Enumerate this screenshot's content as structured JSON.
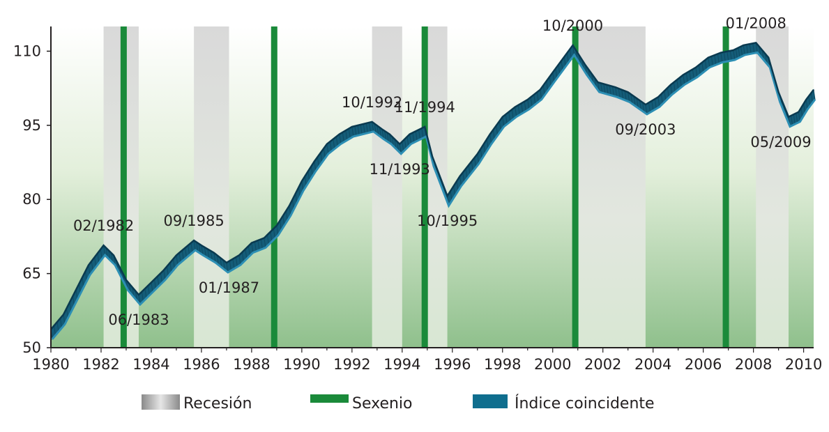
{
  "chart_data": {
    "type": "line",
    "title": "",
    "xlabel": "",
    "ylabel": "",
    "xlim": [
      1980,
      2010.4
    ],
    "ylim": [
      50,
      115
    ],
    "yticks": [
      50,
      65,
      80,
      95,
      110
    ],
    "xticks": [
      1980,
      1982,
      1984,
      1986,
      1988,
      1990,
      1992,
      1994,
      1996,
      1998,
      2000,
      2002,
      2004,
      2006,
      2008,
      2010
    ],
    "grid": false,
    "legend_position": "bottom",
    "legend": [
      {
        "label": "Recesión",
        "color": "#b3b3b3",
        "kind": "recession"
      },
      {
        "label": "Sexenio",
        "color": "#1a8a3a",
        "kind": "sexenio"
      },
      {
        "label": "Índice coincidente",
        "color": "#0f6e8e",
        "kind": "series"
      }
    ],
    "recessions": [
      [
        1982.1,
        1983.5
      ],
      [
        1985.7,
        1987.1
      ],
      [
        1992.8,
        1994.0
      ],
      [
        1994.8,
        1995.8
      ],
      [
        2000.8,
        2003.7
      ],
      [
        2008.1,
        2009.4
      ]
    ],
    "sexenios": [
      1982.9,
      1988.9,
      1994.9,
      2000.9,
      2006.9
    ],
    "series": [
      {
        "name": "Índice coincidente",
        "color": "#0f6e8e",
        "x": [
          1980.0,
          1980.5,
          1981.0,
          1981.5,
          1982.1,
          1982.5,
          1983.0,
          1983.5,
          1984.0,
          1984.5,
          1985.0,
          1985.7,
          1986.0,
          1986.5,
          1987.0,
          1987.5,
          1988.0,
          1988.5,
          1989.0,
          1989.5,
          1990.0,
          1990.5,
          1991.0,
          1991.5,
          1992.0,
          1992.8,
          1993.2,
          1993.5,
          1993.9,
          1994.3,
          1994.9,
          1995.2,
          1995.8,
          1996.3,
          1997.0,
          1997.5,
          1998.0,
          1998.5,
          1999.0,
          1999.5,
          2000.0,
          2000.8,
          2001.3,
          2001.8,
          2002.5,
          2003.0,
          2003.7,
          2004.2,
          2004.7,
          2005.2,
          2005.7,
          2006.2,
          2006.7,
          2007.2,
          2007.6,
          2008.1,
          2008.6,
          2009.0,
          2009.4,
          2009.8,
          2010.1,
          2010.4
        ],
        "values": [
          53.0,
          56.0,
          61.0,
          66.0,
          70.0,
          68.0,
          63.0,
          60.0,
          62.5,
          65.0,
          68.0,
          71.0,
          70.0,
          68.5,
          66.5,
          68.0,
          70.5,
          71.5,
          74.0,
          78.0,
          83.0,
          87.0,
          90.5,
          92.5,
          94.0,
          95.0,
          93.5,
          92.5,
          90.5,
          92.5,
          94.0,
          88.0,
          80.0,
          84.0,
          88.5,
          92.5,
          96.0,
          98.0,
          99.5,
          101.5,
          105.0,
          110.5,
          106.5,
          103.0,
          102.0,
          101.0,
          98.5,
          100.0,
          102.5,
          104.5,
          106.0,
          108.0,
          109.0,
          109.5,
          110.5,
          111.0,
          108.0,
          101.0,
          96.0,
          97.0,
          99.5,
          101.5
        ]
      }
    ],
    "annotations": [
      {
        "text": "02/1982",
        "x": 1982.1,
        "y": 70.0,
        "anchor": "above"
      },
      {
        "text": "06/1983",
        "x": 1983.5,
        "y": 60.0,
        "anchor": "below"
      },
      {
        "text": "09/1985",
        "x": 1985.7,
        "y": 71.0,
        "anchor": "above"
      },
      {
        "text": "01/1987",
        "x": 1987.1,
        "y": 66.5,
        "anchor": "below"
      },
      {
        "text": "10/1992",
        "x": 1992.8,
        "y": 95.0,
        "anchor": "above"
      },
      {
        "text": "11/1993",
        "x": 1993.9,
        "y": 90.5,
        "anchor": "below"
      },
      {
        "text": "11/1994",
        "x": 1994.9,
        "y": 94.0,
        "anchor": "above"
      },
      {
        "text": "10/1995",
        "x": 1995.8,
        "y": 80.0,
        "anchor": "below"
      },
      {
        "text": "10/2000",
        "x": 2000.8,
        "y": 110.5,
        "anchor": "above"
      },
      {
        "text": "09/2003",
        "x": 2003.7,
        "y": 98.5,
        "anchor": "below"
      },
      {
        "text": "01/2008",
        "x": 2008.1,
        "y": 111.0,
        "anchor": "above"
      },
      {
        "text": "05/2009",
        "x": 2009.4,
        "y": 96.0,
        "anchor": "below"
      }
    ]
  }
}
